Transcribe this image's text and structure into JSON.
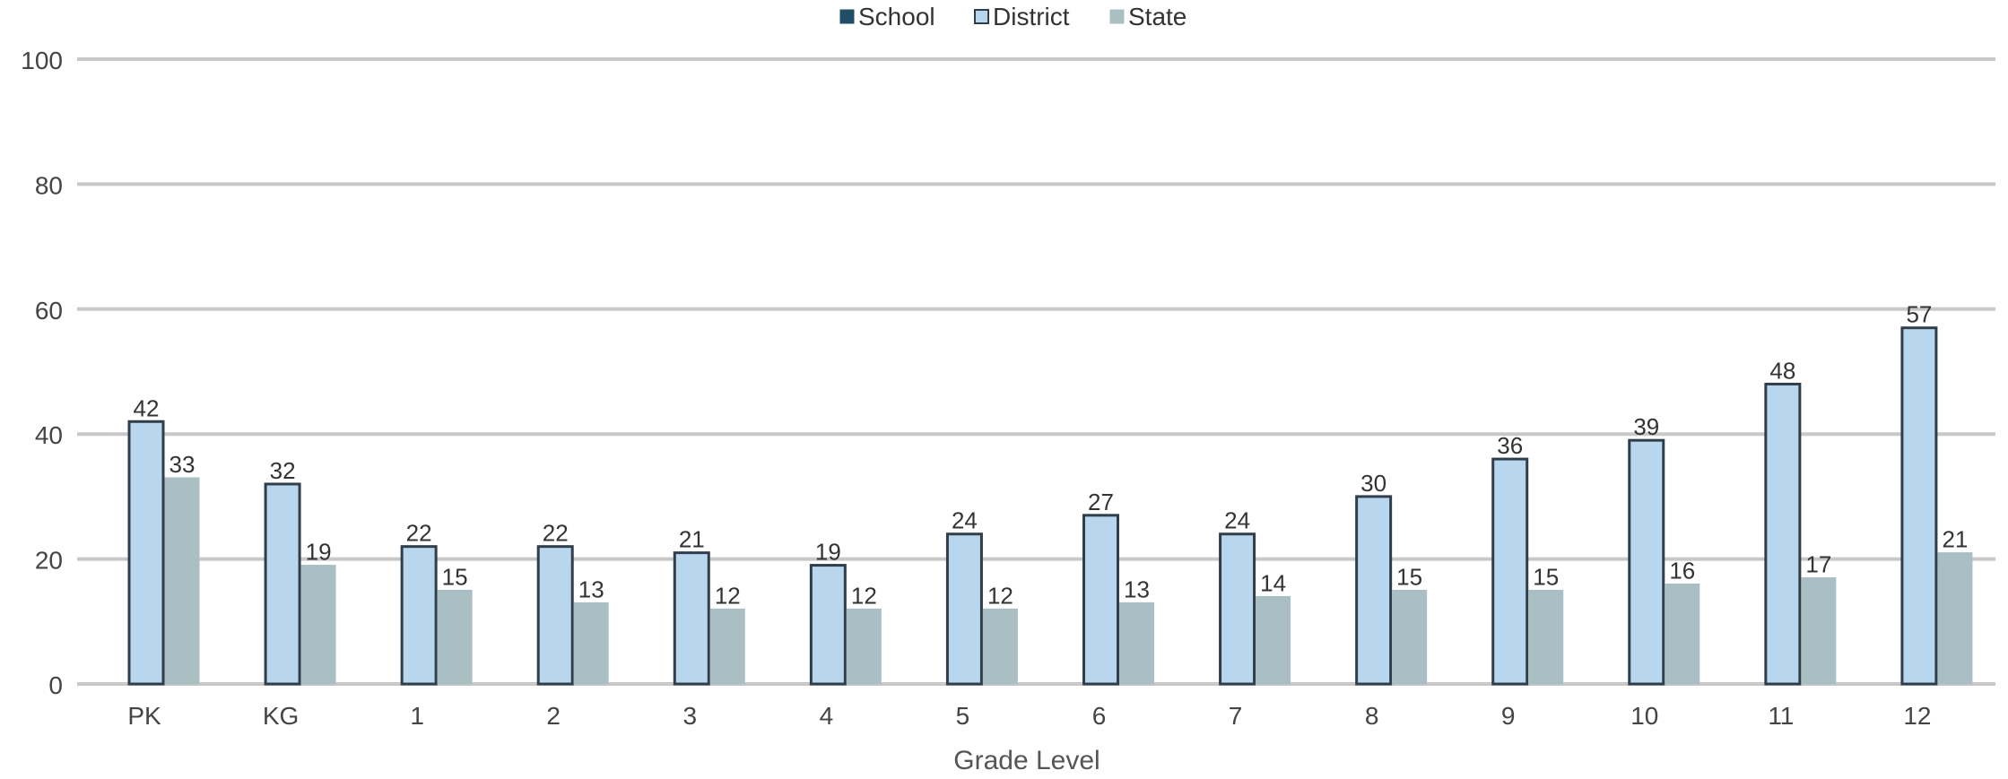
{
  "chart_data": {
    "type": "bar",
    "xlabel": "Grade Level",
    "ylabel": "",
    "ylim": [
      0,
      100
    ],
    "yticks": [
      0,
      20,
      40,
      60,
      80,
      100
    ],
    "grid": true,
    "legend_position": "top-center",
    "categories": [
      "PK",
      "KG",
      "1",
      "2",
      "3",
      "4",
      "5",
      "6",
      "7",
      "8",
      "9",
      "10",
      "11",
      "12"
    ],
    "series": [
      {
        "name": "School",
        "color": "#1f4e66",
        "values": [
          null,
          null,
          null,
          null,
          null,
          null,
          null,
          null,
          null,
          null,
          null,
          null,
          null,
          null
        ]
      },
      {
        "name": "District",
        "color": "#b9d6ef",
        "values": [
          42,
          32,
          22,
          22,
          21,
          19,
          24,
          27,
          24,
          30,
          36,
          39,
          48,
          57
        ]
      },
      {
        "name": "State",
        "color": "#a9bfc4",
        "values": [
          33,
          19,
          15,
          13,
          12,
          12,
          12,
          13,
          14,
          15,
          15,
          16,
          17,
          21
        ]
      }
    ]
  }
}
